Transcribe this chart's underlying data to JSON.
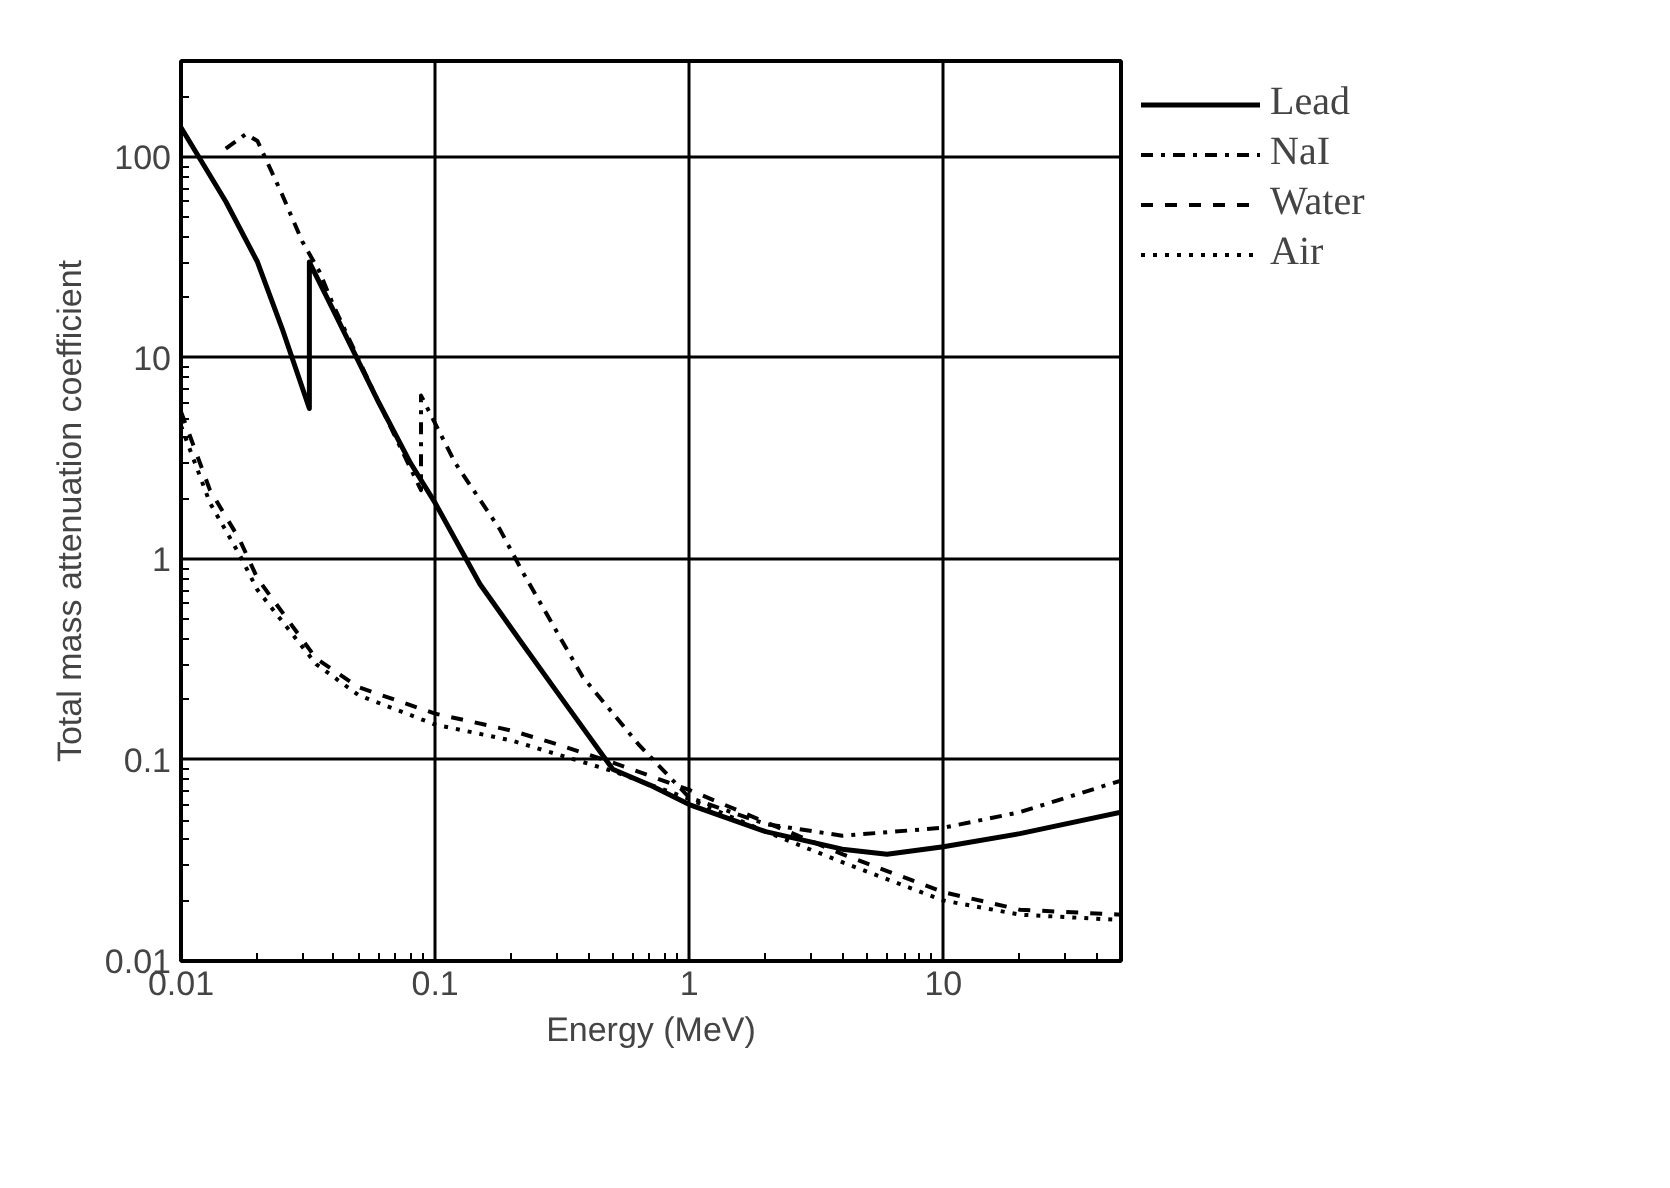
{
  "chart_data": {
    "type": "line",
    "xlabel": "Energy (MeV)",
    "ylabel": "Total mass attenuation coefficient",
    "log": "xy",
    "grid": true,
    "legend": "top right",
    "xlim": [
      0.01,
      50
    ],
    "ylim": [
      0.01,
      300
    ],
    "xticks": [
      0.01,
      0.1,
      1,
      10
    ],
    "yticks": [
      0.01,
      0.1,
      1,
      10,
      100
    ],
    "series": [
      {
        "name": "Lead",
        "color": "#000000",
        "line_style": "solid",
        "x": [
          0.01,
          0.015,
          0.02,
          0.025,
          0.032,
          0.032,
          0.04,
          0.06,
          0.08,
          0.1,
          0.15,
          0.22,
          0.3,
          0.5,
          0.7,
          1,
          2,
          4,
          6,
          10,
          20,
          50
        ],
        "values": [
          140,
          60,
          30,
          14,
          5.6,
          30,
          17,
          6,
          3,
          1.9,
          0.75,
          0.38,
          0.22,
          0.09,
          0.075,
          0.06,
          0.044,
          0.036,
          0.034,
          0.037,
          0.043,
          0.055
        ]
      },
      {
        "name": "NaI",
        "color": "#000000",
        "line_style": "dashdot",
        "x": [
          0.015,
          0.018,
          0.02,
          0.025,
          0.03,
          0.035,
          0.04,
          0.06,
          0.088,
          0.088,
          0.12,
          0.18,
          0.22,
          0.38,
          0.63,
          1,
          2,
          4,
          10,
          20,
          50
        ],
        "values": [
          110,
          130,
          120,
          65,
          38,
          27,
          18,
          6,
          2.2,
          6.5,
          3,
          1.4,
          0.87,
          0.26,
          0.12,
          0.065,
          0.048,
          0.042,
          0.046,
          0.055,
          0.079
        ]
      },
      {
        "name": "Water",
        "color": "#000000",
        "line_style": "dashed",
        "x": [
          0.01,
          0.013,
          0.017,
          0.02,
          0.034,
          0.05,
          0.1,
          0.2,
          0.3,
          0.5,
          1,
          2,
          4,
          10,
          20,
          50
        ],
        "values": [
          5.4,
          2.2,
          1.25,
          0.8,
          0.32,
          0.23,
          0.17,
          0.14,
          0.12,
          0.097,
          0.071,
          0.049,
          0.034,
          0.022,
          0.018,
          0.017
        ]
      },
      {
        "name": "Air",
        "color": "#000000",
        "line_style": "dotted",
        "x": [
          0.01,
          0.013,
          0.017,
          0.02,
          0.034,
          0.05,
          0.1,
          0.2,
          0.3,
          0.5,
          1,
          2,
          4,
          10,
          20,
          50
        ],
        "values": [
          4.6,
          1.9,
          1.05,
          0.7,
          0.3,
          0.21,
          0.15,
          0.125,
          0.107,
          0.088,
          0.064,
          0.044,
          0.031,
          0.02,
          0.017,
          0.016
        ]
      }
    ]
  }
}
